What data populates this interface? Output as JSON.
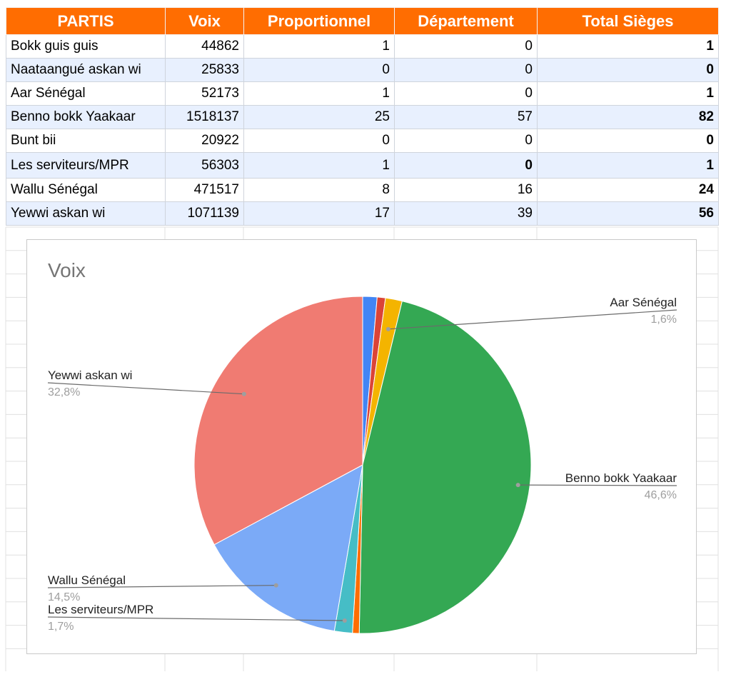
{
  "table": {
    "headers": [
      "PARTIS",
      "Voix",
      "Proportionnel",
      "Département",
      "Total Sièges"
    ],
    "rows": [
      {
        "name": "Bokk guis guis",
        "voix": "44862",
        "prop": "1",
        "dept": "0",
        "total": "1"
      },
      {
        "name": "Naataangué askan wi",
        "voix": "25833",
        "prop": "0",
        "dept": "0",
        "total": "0"
      },
      {
        "name": "Aar Sénégal",
        "voix": "52173",
        "prop": "1",
        "dept": "0",
        "total": "1"
      },
      {
        "name": "Benno bokk Yaakaar",
        "voix": "1518137",
        "prop": "25",
        "dept": "57",
        "total": "82"
      },
      {
        "name": "Bunt bii",
        "voix": "20922",
        "prop": "0",
        "dept": "0",
        "total": "0"
      },
      {
        "name": "Les serviteurs/MPR",
        "voix": "56303",
        "prop": "1",
        "dept": "0",
        "total": "1"
      },
      {
        "name": "Wallu Sénégal",
        "voix": "471517",
        "prop": "8",
        "dept": "16",
        "total": "24"
      },
      {
        "name": "Yewwi askan wi",
        "voix": "1071139",
        "prop": "17",
        "dept": "39",
        "total": "56"
      }
    ]
  },
  "colors": {
    "header_bg": "#ff6d01",
    "alt_row_bg": "#e8f0fe"
  },
  "chart_data": {
    "type": "pie",
    "title": "Voix",
    "legend": "none",
    "slices": [
      {
        "label": "Bokk guis guis",
        "value": 44862,
        "color": "#4285f4"
      },
      {
        "label": "Naataangué askan wi",
        "value": 25833,
        "color": "#db4437"
      },
      {
        "label": "Aar Sénégal",
        "value": 52173,
        "color": "#f4b400",
        "display_label": "Aar Sénégal",
        "display_pct": "1,6%"
      },
      {
        "label": "Benno bokk Yaakaar",
        "value": 1518137,
        "color": "#34a853",
        "display_label": "Benno bokk Yaakaar",
        "display_pct": "46,6%"
      },
      {
        "label": "Bunt bii",
        "value": 20922,
        "color": "#ff6d01"
      },
      {
        "label": "Les serviteurs/MPR",
        "value": 56303,
        "color": "#46bdc6",
        "display_label": "Les serviteurs/MPR",
        "display_pct": "1,7%"
      },
      {
        "label": "Wallu Sénégal",
        "value": 471517,
        "color": "#7baaf7",
        "display_label": "Wallu Sénégal",
        "display_pct": "14,5%"
      },
      {
        "label": "Yewwi askan wi",
        "value": 1071139,
        "color": "#f07b72",
        "display_label": "Yewwi askan wi",
        "display_pct": "32,8%"
      }
    ]
  }
}
